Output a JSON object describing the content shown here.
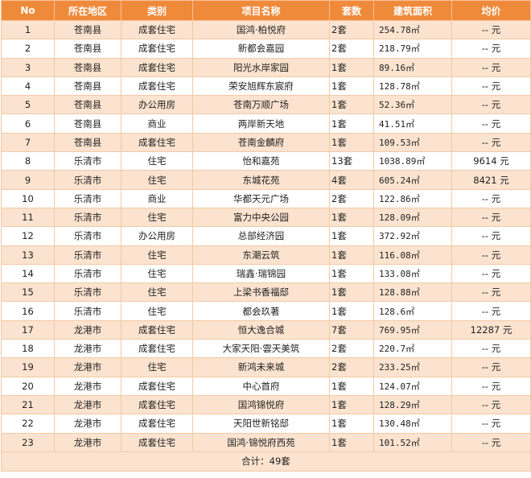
{
  "table": {
    "headers": [
      "No",
      "所在地区",
      "类别",
      "项目名称",
      "套数",
      "建筑面积",
      "均价"
    ],
    "rows": [
      {
        "no": "1",
        "region": "苍南县",
        "type": "成套住宅",
        "project": "国鸿·柏悦府",
        "units": "2套",
        "area": "254.78㎡",
        "price": "-- 元"
      },
      {
        "no": "2",
        "region": "苍南县",
        "type": "成套住宅",
        "project": "新都会嘉园",
        "units": "2套",
        "area": "218.79㎡",
        "price": "-- 元"
      },
      {
        "no": "3",
        "region": "苍南县",
        "type": "成套住宅",
        "project": "阳光水岸家园",
        "units": "1套",
        "area": "89.16㎡",
        "price": "-- 元"
      },
      {
        "no": "4",
        "region": "苍南县",
        "type": "成套住宅",
        "project": "荣安旭辉东宸府",
        "units": "1套",
        "area": "128.78㎡",
        "price": "-- 元"
      },
      {
        "no": "5",
        "region": "苍南县",
        "type": "办公用房",
        "project": "苍南万顺广场",
        "units": "1套",
        "area": "52.36㎡",
        "price": "-- 元"
      },
      {
        "no": "6",
        "region": "苍南县",
        "type": "商业",
        "project": "两岸新天地",
        "units": "1套",
        "area": "41.51㎡",
        "price": "-- 元"
      },
      {
        "no": "7",
        "region": "苍南县",
        "type": "成套住宅",
        "project": "苍南金麟府",
        "units": "1套",
        "area": "109.53㎡",
        "price": "-- 元"
      },
      {
        "no": "8",
        "region": "乐清市",
        "type": "住宅",
        "project": "怡和嘉苑",
        "units": "13套",
        "area": "1038.89㎡",
        "price": "9614 元"
      },
      {
        "no": "9",
        "region": "乐清市",
        "type": "住宅",
        "project": "东城花苑",
        "units": "4套",
        "area": "605.24㎡",
        "price": "8421 元"
      },
      {
        "no": "10",
        "region": "乐清市",
        "type": "商业",
        "project": "华都天元广场",
        "units": "2套",
        "area": "122.86㎡",
        "price": "-- 元"
      },
      {
        "no": "11",
        "region": "乐清市",
        "type": "住宅",
        "project": "富力中央公园",
        "units": "1套",
        "area": "128.09㎡",
        "price": "-- 元"
      },
      {
        "no": "12",
        "region": "乐清市",
        "type": "办公用房",
        "project": "总部经济园",
        "units": "1套",
        "area": "372.92㎡",
        "price": "-- 元"
      },
      {
        "no": "13",
        "region": "乐清市",
        "type": "住宅",
        "project": "东潮云筑",
        "units": "1套",
        "area": "116.08㎡",
        "price": "-- 元"
      },
      {
        "no": "14",
        "region": "乐清市",
        "type": "住宅",
        "project": "瑞鑫·瑞锦园",
        "units": "1套",
        "area": "133.08㎡",
        "price": "-- 元"
      },
      {
        "no": "15",
        "region": "乐清市",
        "type": "住宅",
        "project": "上梁书香福邸",
        "units": "1套",
        "area": "128.88㎡",
        "price": "-- 元"
      },
      {
        "no": "16",
        "region": "乐清市",
        "type": "住宅",
        "project": "都会玖著",
        "units": "1套",
        "area": "128.6㎡",
        "price": "-- 元"
      },
      {
        "no": "17",
        "region": "龙港市",
        "type": "成套住宅",
        "project": "恒大逸合城",
        "units": "7套",
        "area": "769.95㎡",
        "price": "12287 元"
      },
      {
        "no": "18",
        "region": "龙港市",
        "type": "成套住宅",
        "project": "大家天阳·雲天美筑",
        "units": "2套",
        "area": "220.7㎡",
        "price": "-- 元"
      },
      {
        "no": "19",
        "region": "龙港市",
        "type": "住宅",
        "project": "新鸿未来城",
        "units": "2套",
        "area": "233.25㎡",
        "price": "-- 元"
      },
      {
        "no": "20",
        "region": "龙港市",
        "type": "成套住宅",
        "project": "中心首府",
        "units": "1套",
        "area": "124.07㎡",
        "price": "-- 元"
      },
      {
        "no": "21",
        "region": "龙港市",
        "type": "成套住宅",
        "project": "国鸿锦悦府",
        "units": "1套",
        "area": "128.29㎡",
        "price": "-- 元"
      },
      {
        "no": "22",
        "region": "龙港市",
        "type": "成套住宅",
        "project": "天阳世新铭邸",
        "units": "1套",
        "area": "130.48㎡",
        "price": "-- 元"
      },
      {
        "no": "23",
        "region": "龙港市",
        "type": "成套住宅",
        "project": "国鸿·锦悦府西苑",
        "units": "1套",
        "area": "101.52㎡",
        "price": "-- 元"
      }
    ],
    "total": "合计：49套"
  },
  "colors": {
    "header_bg": "#ef8a3b",
    "header_text": "#ffffff",
    "stripe_bg": "#fbe3cf",
    "row_bg": "#ffffff",
    "border": "#f3c9a4"
  }
}
